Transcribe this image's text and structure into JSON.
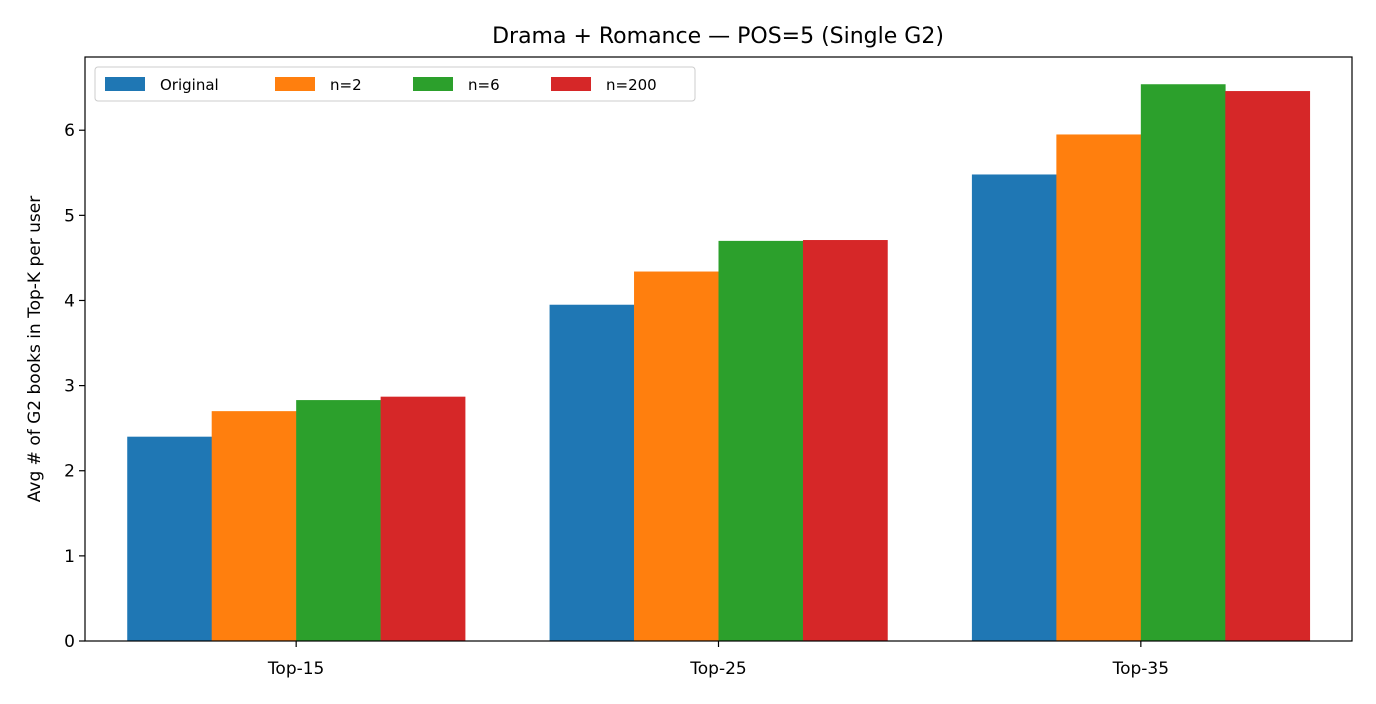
{
  "chart_data": {
    "type": "bar",
    "title": "Drama + Romance — POS=5 (Single G2)",
    "xlabel": "",
    "ylabel": "Avg # of G2 books in Top-K per user",
    "categories": [
      "Top-15",
      "Top-25",
      "Top-35"
    ],
    "series": [
      {
        "name": "Original",
        "color": "#1f77b4",
        "values": [
          2.4,
          3.95,
          5.48
        ]
      },
      {
        "name": "n=2",
        "color": "#ff7f0e",
        "values": [
          2.7,
          4.34,
          5.95
        ]
      },
      {
        "name": "n=6",
        "color": "#2ca02c",
        "values": [
          2.83,
          4.7,
          6.54
        ]
      },
      {
        "name": "n=200",
        "color": "#d62728",
        "values": [
          2.87,
          4.71,
          6.46
        ]
      }
    ],
    "ylim": [
      0,
      6.86
    ],
    "yticks": [
      0,
      1,
      2,
      3,
      4,
      5,
      6
    ],
    "grid": false,
    "legend_position": "top-left",
    "legend_columns": 4
  }
}
